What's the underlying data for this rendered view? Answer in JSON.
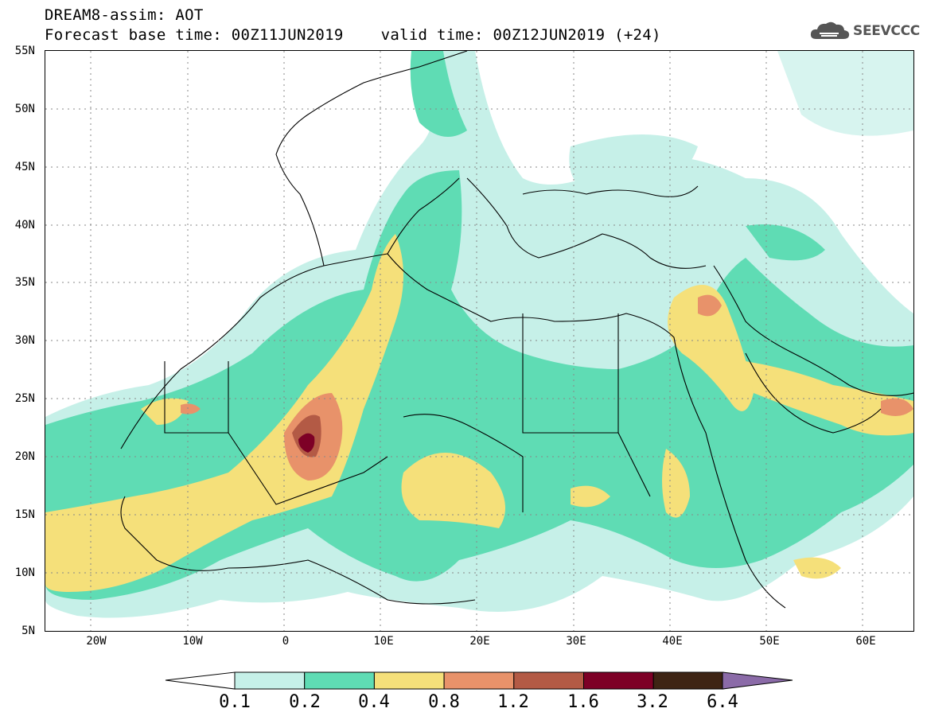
{
  "header": {
    "line1": "DREAM8-assim: AOT",
    "line2": "Forecast base time: 00Z11JUN2019    valid time: 00Z12JUN2019 (+24)"
  },
  "logo": {
    "text": "SEEVCCC",
    "icon": "cloud-icon"
  },
  "axes": {
    "lat_labels": [
      "55N",
      "50N",
      "45N",
      "40N",
      "35N",
      "30N",
      "25N",
      "20N",
      "15N",
      "10N",
      "5N"
    ],
    "lon_labels": [
      "20W",
      "10W",
      "0",
      "10E",
      "20E",
      "30E",
      "40E",
      "50E",
      "60E"
    ],
    "lon_range": [
      -25,
      65
    ],
    "lat_range": [
      5,
      55
    ]
  },
  "colorbar": {
    "labels": [
      "0.1",
      "0.2",
      "0.4",
      "0.8",
      "1.2",
      "1.6",
      "3.2",
      "6.4"
    ],
    "colors": [
      "#c6f0e8",
      "#5fdcb4",
      "#f5e07a",
      "#e8926a",
      "#b35a45",
      "#7d0026",
      "#3e2414",
      "#8b6ba8"
    ]
  }
}
